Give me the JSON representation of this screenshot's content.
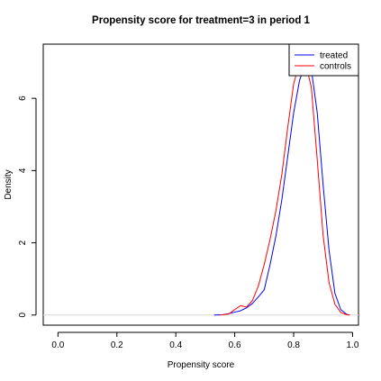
{
  "chart_data": {
    "type": "line",
    "title": "Propensity score for treatment=3 in period 1",
    "xlabel": "Propensity score",
    "ylabel": "Density",
    "xlim": [
      -0.05,
      1.02
    ],
    "ylim": [
      -0.28,
      7.5
    ],
    "x_ticks": [
      {
        "value": 0.0,
        "label": "0.0"
      },
      {
        "value": 0.2,
        "label": "0.2"
      },
      {
        "value": 0.4,
        "label": "0.4"
      },
      {
        "value": 0.6,
        "label": "0.6"
      },
      {
        "value": 0.8,
        "label": "0.8"
      },
      {
        "value": 1.0,
        "label": "1.0"
      }
    ],
    "y_ticks": [
      {
        "value": 0,
        "label": "0"
      },
      {
        "value": 2,
        "label": "2"
      },
      {
        "value": 4,
        "label": "4"
      },
      {
        "value": 6,
        "label": "6"
      }
    ],
    "grid": false,
    "baseline": 0,
    "legend_position": "top-right",
    "series": [
      {
        "name": "treated",
        "color": "#0000ff",
        "points": [
          [
            0.53,
            0.0
          ],
          [
            0.56,
            0.01
          ],
          [
            0.58,
            0.04
          ],
          [
            0.6,
            0.08
          ],
          [
            0.62,
            0.12
          ],
          [
            0.64,
            0.2
          ],
          [
            0.66,
            0.32
          ],
          [
            0.68,
            0.5
          ],
          [
            0.7,
            0.7
          ],
          [
            0.72,
            1.4
          ],
          [
            0.74,
            2.2
          ],
          [
            0.76,
            3.2
          ],
          [
            0.78,
            4.4
          ],
          [
            0.8,
            5.6
          ],
          [
            0.82,
            6.5
          ],
          [
            0.84,
            6.95
          ],
          [
            0.85,
            7.0
          ],
          [
            0.86,
            6.8
          ],
          [
            0.88,
            5.6
          ],
          [
            0.9,
            3.6
          ],
          [
            0.92,
            1.8
          ],
          [
            0.94,
            0.6
          ],
          [
            0.96,
            0.15
          ],
          [
            0.98,
            0.02
          ],
          [
            0.99,
            0.0
          ]
        ]
      },
      {
        "name": "controls",
        "color": "#ff0000",
        "points": [
          [
            0.55,
            0.0
          ],
          [
            0.58,
            0.03
          ],
          [
            0.6,
            0.15
          ],
          [
            0.62,
            0.26
          ],
          [
            0.64,
            0.22
          ],
          [
            0.66,
            0.4
          ],
          [
            0.68,
            0.8
          ],
          [
            0.7,
            1.4
          ],
          [
            0.72,
            2.1
          ],
          [
            0.74,
            2.9
          ],
          [
            0.76,
            3.9
          ],
          [
            0.78,
            5.2
          ],
          [
            0.8,
            6.4
          ],
          [
            0.82,
            7.0
          ],
          [
            0.83,
            7.1
          ],
          [
            0.84,
            7.0
          ],
          [
            0.86,
            6.3
          ],
          [
            0.88,
            4.3
          ],
          [
            0.9,
            2.2
          ],
          [
            0.92,
            0.9
          ],
          [
            0.94,
            0.3
          ],
          [
            0.96,
            0.07
          ],
          [
            0.98,
            0.01
          ],
          [
            0.99,
            0.0
          ]
        ]
      }
    ]
  }
}
